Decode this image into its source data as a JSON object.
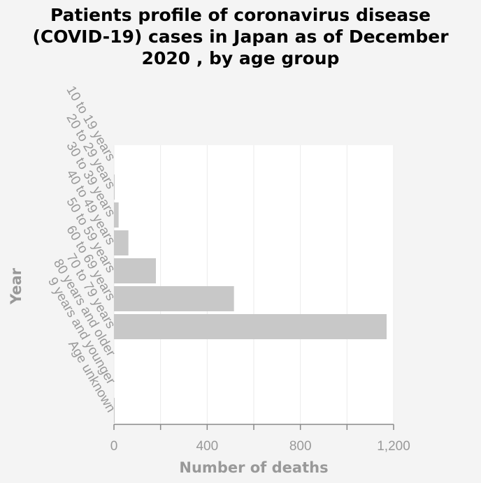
{
  "chart_data": {
    "type": "bar",
    "orientation": "horizontal",
    "title": [
      "Patients profile of coronavirus disease",
      "(COVID-19) cases in Japan as of December",
      "2020 , by age group"
    ],
    "xlabel": "Number of deaths",
    "ylabel": "Year",
    "xlim": [
      0,
      1200
    ],
    "x_ticks": [
      "0",
      "400",
      "800",
      "1,200"
    ],
    "x_tick_values": [
      0,
      400,
      800,
      1200
    ],
    "grid": true,
    "categories": [
      "10 to 19 years",
      "20 to 29 years",
      "30 to 39 years",
      "40 to 49 years",
      "50 to 59 years",
      "60 to 69 years",
      "70 to 79 years",
      "80 years and older",
      "9 years and younger",
      "Age unknown"
    ],
    "values": [
      0,
      2,
      20,
      62,
      180,
      515,
      1170,
      0,
      0,
      3
    ],
    "bar_color": "#c8c8c8"
  }
}
